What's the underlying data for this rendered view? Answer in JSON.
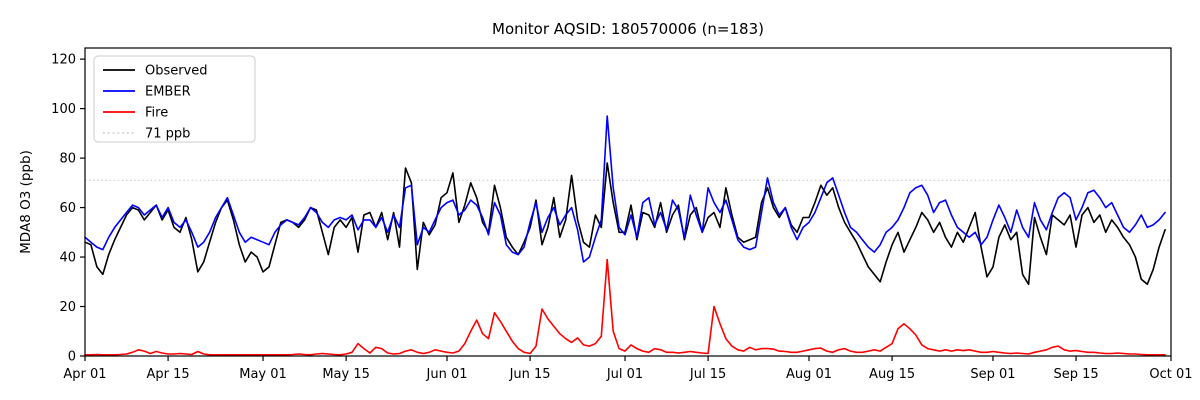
{
  "chart_data": {
    "type": "line",
    "title": "Monitor AQSID: 180570006 (n=183)",
    "xlabel": "",
    "ylabel": "MDA8 O3 (ppb)",
    "ylim": [
      0,
      124.5
    ],
    "yticks": [
      0,
      20,
      40,
      60,
      80,
      100,
      120
    ],
    "grid": false,
    "legend_position": "upper-left",
    "x_total_days": 183,
    "x_range": [
      "Apr 01",
      "Oct 01"
    ],
    "xticks": [
      {
        "label": "Apr 01",
        "day": 0
      },
      {
        "label": "Apr 15",
        "day": 14
      },
      {
        "label": "May 01",
        "day": 30
      },
      {
        "label": "May 15",
        "day": 44
      },
      {
        "label": "Jun 01",
        "day": 61
      },
      {
        "label": "Jun 15",
        "day": 75
      },
      {
        "label": "Jul 01",
        "day": 91
      },
      {
        "label": "Jul 15",
        "day": 105
      },
      {
        "label": "Aug 01",
        "day": 122
      },
      {
        "label": "Aug 15",
        "day": 136
      },
      {
        "label": "Sep 01",
        "day": 153
      },
      {
        "label": "Sep 15",
        "day": 167
      },
      {
        "label": "Oct 01",
        "day": 183
      }
    ],
    "threshold": {
      "value": 71,
      "label": "71 ppb",
      "color": "#d3d3d3",
      "style": "dotted"
    },
    "series": [
      {
        "name": "Observed",
        "color": "#000000",
        "style": "solid",
        "values": [
          46,
          45,
          36,
          33,
          41,
          47,
          52,
          57,
          60,
          59,
          55,
          58,
          61,
          55,
          59,
          52,
          50,
          56,
          47,
          34,
          38,
          46,
          54,
          60,
          63,
          55,
          45,
          38,
          42,
          40,
          34,
          36,
          45,
          54,
          55,
          54,
          52,
          55,
          60,
          59,
          50,
          41,
          52,
          55,
          52,
          56,
          42,
          57,
          58,
          52,
          58,
          47,
          58,
          44,
          76,
          70,
          35,
          54,
          49,
          53,
          64,
          66,
          74,
          54,
          61,
          70,
          64,
          54,
          50,
          69,
          60,
          48,
          44,
          41,
          46,
          52,
          63,
          45,
          52,
          64,
          48,
          55,
          73,
          55,
          46,
          44,
          57,
          52,
          78,
          62,
          50,
          50,
          61,
          47,
          58,
          57,
          52,
          62,
          50,
          57,
          61,
          47,
          57,
          60,
          50,
          56,
          58,
          52,
          68,
          57,
          48,
          46,
          47,
          48,
          62,
          68,
          60,
          56,
          60,
          53,
          50,
          56,
          56,
          62,
          69,
          65,
          68,
          60,
          54,
          50,
          46,
          41,
          36,
          33,
          30,
          38,
          45,
          50,
          42,
          47,
          52,
          58,
          55,
          50,
          54,
          48,
          44,
          50,
          46,
          52,
          58,
          44,
          32,
          36,
          48,
          53,
          47,
          50,
          33,
          29,
          56,
          48,
          41,
          57,
          55,
          53,
          57,
          44,
          57,
          60,
          54,
          57,
          50,
          55,
          52,
          48,
          45,
          40,
          31,
          29,
          35,
          44,
          51
        ]
      },
      {
        "name": "EMBER",
        "color": "#0000ff",
        "style": "solid",
        "values": [
          48,
          46,
          44,
          43,
          48,
          52,
          55,
          58,
          61,
          60,
          57,
          59,
          61,
          56,
          60,
          54,
          52,
          55,
          50,
          44,
          46,
          50,
          56,
          60,
          64,
          57,
          50,
          46,
          48,
          47,
          46,
          45,
          50,
          53,
          55,
          54,
          53,
          56,
          60,
          58,
          54,
          52,
          55,
          56,
          55,
          57,
          51,
          55,
          55,
          52,
          56,
          50,
          57,
          52,
          68,
          69,
          45,
          52,
          50,
          55,
          60,
          62,
          63,
          57,
          59,
          63,
          61,
          56,
          49,
          62,
          57,
          45,
          42,
          41,
          44,
          54,
          62,
          50,
          56,
          60,
          53,
          57,
          60,
          51,
          38,
          40,
          48,
          55,
          97,
          68,
          52,
          49,
          57,
          48,
          62,
          64,
          53,
          58,
          51,
          63,
          59,
          48,
          65,
          57,
          50,
          68,
          62,
          58,
          63,
          55,
          47,
          44,
          43,
          44,
          58,
          72,
          62,
          57,
          60,
          52,
          47,
          52,
          54,
          58,
          64,
          70,
          72,
          65,
          58,
          52,
          50,
          47,
          44,
          42,
          45,
          50,
          52,
          55,
          60,
          66,
          68,
          69,
          65,
          58,
          62,
          63,
          57,
          52,
          50,
          48,
          50,
          45,
          48,
          55,
          61,
          56,
          50,
          59,
          52,
          48,
          62,
          55,
          51,
          58,
          64,
          66,
          64,
          55,
          60,
          66,
          67,
          64,
          60,
          62,
          57,
          52,
          50,
          53,
          57,
          52,
          53,
          55,
          58
        ]
      },
      {
        "name": "Fire",
        "color": "#ff0000",
        "style": "solid",
        "values": [
          0.5,
          0.5,
          0.6,
          0.5,
          0.5,
          0.5,
          0.6,
          0.8,
          1.5,
          2.5,
          2,
          1,
          1.8,
          1.2,
          0.8,
          0.8,
          1,
          0.8,
          0.6,
          1.8,
          0.8,
          0.5,
          0.5,
          0.5,
          0.5,
          0.5,
          0.5,
          0.5,
          0.5,
          0.5,
          0.5,
          0.5,
          0.5,
          0.5,
          0.5,
          0.6,
          0.8,
          0.6,
          0.5,
          0.8,
          1,
          0.8,
          0.6,
          0.5,
          0.8,
          1.5,
          5,
          3,
          1.2,
          3.5,
          3,
          1.2,
          0.8,
          1,
          2,
          2.5,
          1.5,
          1,
          1.5,
          2.5,
          2,
          1.5,
          1.2,
          2,
          5,
          10,
          14.5,
          9,
          7,
          17.5,
          14,
          10,
          6,
          3,
          1.5,
          1,
          4,
          19,
          15,
          12,
          9,
          7,
          5.5,
          7.3,
          4.5,
          4,
          5,
          8,
          39,
          10,
          3,
          2,
          4.5,
          3,
          2,
          1.5,
          3,
          2.5,
          1.5,
          1.5,
          1.2,
          1.5,
          1.8,
          1.5,
          1.2,
          1,
          20,
          13,
          7,
          4,
          2.5,
          2,
          3.5,
          2.5,
          3,
          3,
          2.8,
          2,
          1.8,
          1.5,
          1.5,
          2,
          2.5,
          3,
          3.2,
          2,
          1.5,
          2.5,
          3,
          2,
          1.5,
          1.5,
          2,
          2.5,
          2,
          3.5,
          5,
          11,
          13,
          11,
          8.5,
          4.5,
          3,
          2.5,
          2,
          2.5,
          2,
          2.5,
          2.2,
          2.5,
          2,
          1.5,
          1.5,
          1.8,
          1.5,
          1.2,
          1,
          1.2,
          1,
          0.8,
          1.5,
          2,
          2.5,
          3.5,
          4,
          2.5,
          2,
          2.2,
          1.8,
          1.5,
          1.5,
          1.2,
          1,
          1,
          1.2,
          1,
          0.8,
          0.8,
          0.6,
          0.5,
          0.5,
          0.5,
          0.5
        ]
      }
    ]
  }
}
